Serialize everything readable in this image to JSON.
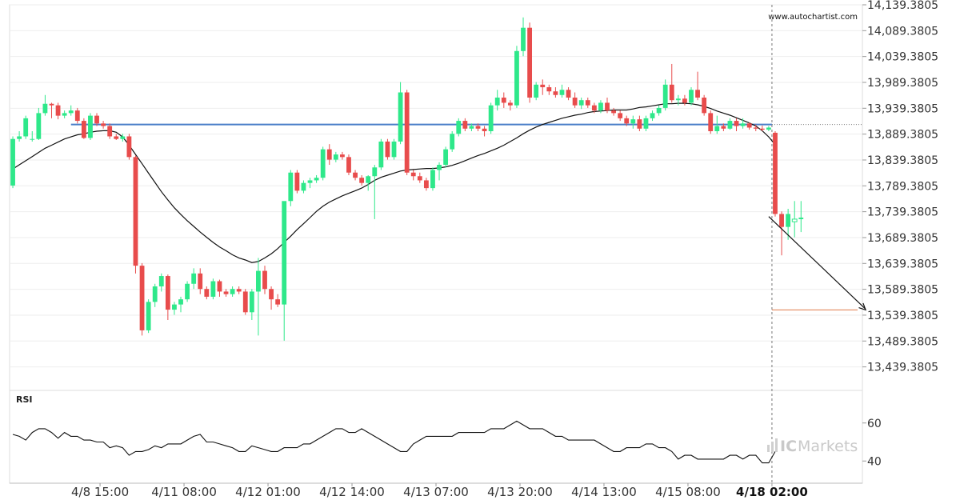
{
  "watermark": "www.autochartist.com",
  "brand": {
    "prefix": "IC",
    "name": "Markets",
    "color": "#c9c9c9"
  },
  "chart_data": {
    "type": "candlestick",
    "y_ticks": [
      "14,139.3805",
      "14,089.3805",
      "14,039.3805",
      "13,989.3805",
      "13,939.3805",
      "13,889.3805",
      "13,839.3805",
      "13,789.3805",
      "13,739.3805",
      "13,689.3805",
      "13,639.3805",
      "13,589.3805",
      "13,539.3805",
      "13,489.3805",
      "13,439.3805"
    ],
    "ylim": [
      13409.3805,
      14139.3805
    ],
    "x_ticks": [
      {
        "label": "4/8 15:00",
        "index": 13.5,
        "highlight": false
      },
      {
        "label": "4/11 08:00",
        "index": 26.5,
        "highlight": false
      },
      {
        "label": "4/12 01:00",
        "index": 39.5,
        "highlight": false
      },
      {
        "label": "4/12 14:00",
        "index": 52.5,
        "highlight": false
      },
      {
        "label": "4/13 07:00",
        "index": 65.5,
        "highlight": false
      },
      {
        "label": "4/13 20:00",
        "index": 78.5,
        "highlight": false
      },
      {
        "label": "4/14 13:00",
        "index": 91.5,
        "highlight": false
      },
      {
        "label": "4/15 08:00",
        "index": 104.5,
        "highlight": false
      },
      {
        "label": "4/18 02:00",
        "index": 117.5,
        "highlight": true
      }
    ],
    "candles": [
      [
        13790,
        13885,
        13785,
        13880
      ],
      [
        13880,
        13895,
        13875,
        13885
      ],
      [
        13885,
        13925,
        13880,
        13920
      ],
      [
        13880,
        13895,
        13875,
        13880
      ],
      [
        13880,
        13940,
        13878,
        13930
      ],
      [
        13930,
        13965,
        13925,
        13948
      ],
      [
        13948,
        13950,
        13920,
        13945
      ],
      [
        13945,
        13950,
        13918,
        13925
      ],
      [
        13925,
        13935,
        13920,
        13930
      ],
      [
        13930,
        13945,
        13925,
        13935
      ],
      [
        13935,
        13940,
        13910,
        13915
      ],
      [
        13915,
        13920,
        13880,
        13882
      ],
      [
        13882,
        13930,
        13878,
        13925
      ],
      [
        13925,
        13930,
        13905,
        13910
      ],
      [
        13910,
        13915,
        13900,
        13905
      ],
      [
        13905,
        13910,
        13880,
        13885
      ],
      [
        13885,
        13890,
        13878,
        13880
      ],
      [
        13880,
        13890,
        13875,
        13885
      ],
      [
        13885,
        13890,
        13840,
        13845
      ],
      [
        13845,
        13848,
        13620,
        13635
      ],
      [
        13635,
        13640,
        13500,
        13510
      ],
      [
        13510,
        13570,
        13505,
        13565
      ],
      [
        13565,
        13600,
        13555,
        13595
      ],
      [
        13595,
        13620,
        13585,
        13615
      ],
      [
        13615,
        13618,
        13530,
        13550
      ],
      [
        13550,
        13565,
        13540,
        13560
      ],
      [
        13560,
        13575,
        13545,
        13570
      ],
      [
        13570,
        13605,
        13565,
        13600
      ],
      [
        13600,
        13630,
        13590,
        13620
      ],
      [
        13620,
        13630,
        13580,
        13590
      ],
      [
        13590,
        13595,
        13570,
        13575
      ],
      [
        13575,
        13610,
        13570,
        13605
      ],
      [
        13605,
        13608,
        13575,
        13585
      ],
      [
        13585,
        13590,
        13575,
        13580
      ],
      [
        13580,
        13595,
        13575,
        13590
      ],
      [
        13590,
        13595,
        13580,
        13585
      ],
      [
        13585,
        13590,
        13540,
        13545
      ],
      [
        13545,
        13590,
        13530,
        13585
      ],
      [
        13585,
        13650,
        13500,
        13625
      ],
      [
        13625,
        13635,
        13580,
        13590
      ],
      [
        13590,
        13595,
        13550,
        13570
      ],
      [
        13570,
        13580,
        13555,
        13560
      ],
      [
        13560,
        13755,
        13490,
        13760
      ],
      [
        13760,
        13820,
        13750,
        13815
      ],
      [
        13815,
        13820,
        13775,
        13780
      ],
      [
        13780,
        13800,
        13775,
        13795
      ],
      [
        13795,
        13805,
        13785,
        13800
      ],
      [
        13800,
        13810,
        13795,
        13805
      ],
      [
        13805,
        13865,
        13800,
        13860
      ],
      [
        13860,
        13870,
        13830,
        13840
      ],
      [
        13840,
        13855,
        13835,
        13850
      ],
      [
        13850,
        13855,
        13840,
        13845
      ],
      [
        13845,
        13850,
        13810,
        13815
      ],
      [
        13815,
        13820,
        13800,
        13805
      ],
      [
        13805,
        13810,
        13790,
        13795
      ],
      [
        13795,
        13810,
        13780,
        13808
      ],
      [
        13808,
        13830,
        13725,
        13825
      ],
      [
        13825,
        13880,
        13820,
        13875
      ],
      [
        13875,
        13880,
        13840,
        13845
      ],
      [
        13845,
        13880,
        13840,
        13875
      ],
      [
        13875,
        13990,
        13870,
        13970
      ],
      [
        13970,
        13975,
        13810,
        13815
      ],
      [
        13815,
        13820,
        13800,
        13808
      ],
      [
        13808,
        13815,
        13795,
        13800
      ],
      [
        13800,
        13805,
        13780,
        13785
      ],
      [
        13785,
        13825,
        13780,
        13820
      ],
      [
        13820,
        13835,
        13800,
        13830
      ],
      [
        13830,
        13865,
        13825,
        13860
      ],
      [
        13860,
        13895,
        13855,
        13890
      ],
      [
        13890,
        13920,
        13885,
        13915
      ],
      [
        13915,
        13920,
        13895,
        13900
      ],
      [
        13900,
        13910,
        13895,
        13905
      ],
      [
        13905,
        13910,
        13895,
        13900
      ],
      [
        13900,
        13905,
        13885,
        13895
      ],
      [
        13895,
        13950,
        13890,
        13945
      ],
      [
        13945,
        13975,
        13935,
        13960
      ],
      [
        13960,
        13970,
        13940,
        13950
      ],
      [
        13950,
        13955,
        13935,
        13945
      ],
      [
        13945,
        14060,
        13940,
        14050
      ],
      [
        14050,
        14115,
        14040,
        14095
      ],
      [
        14095,
        14105,
        13950,
        13960
      ],
      [
        13960,
        13990,
        13955,
        13985
      ],
      [
        13985,
        13995,
        13965,
        13980
      ],
      [
        13980,
        13985,
        13965,
        13972
      ],
      [
        13972,
        13980,
        13960,
        13965
      ],
      [
        13965,
        13985,
        13960,
        13975
      ],
      [
        13975,
        13980,
        13955,
        13960
      ],
      [
        13960,
        13970,
        13940,
        13945
      ],
      [
        13945,
        13960,
        13938,
        13955
      ],
      [
        13955,
        13960,
        13940,
        13945
      ],
      [
        13945,
        13950,
        13930,
        13935
      ],
      [
        13935,
        13955,
        13930,
        13950
      ],
      [
        13950,
        13960,
        13930,
        13935
      ],
      [
        13935,
        13940,
        13925,
        13930
      ],
      [
        13930,
        13935,
        13915,
        13920
      ],
      [
        13920,
        13925,
        13905,
        13910
      ],
      [
        13910,
        13925,
        13900,
        13918
      ],
      [
        13918,
        13925,
        13895,
        13900
      ],
      [
        13900,
        13925,
        13895,
        13920
      ],
      [
        13920,
        13935,
        13915,
        13930
      ],
      [
        13930,
        13945,
        13925,
        13940
      ],
      [
        13940,
        13995,
        13935,
        13985
      ],
      [
        13985,
        14025,
        13950,
        13955
      ],
      [
        13955,
        13965,
        13945,
        13958
      ],
      [
        13958,
        13965,
        13945,
        13950
      ],
      [
        13950,
        13980,
        13945,
        13975
      ],
      [
        13975,
        14010,
        13955,
        13960
      ],
      [
        13960,
        13965,
        13925,
        13930
      ],
      [
        13930,
        13935,
        13890,
        13895
      ],
      [
        13895,
        13925,
        13890,
        13905
      ],
      [
        13905,
        13910,
        13895,
        13900
      ],
      [
        13900,
        13920,
        13898,
        13915
      ],
      [
        13915,
        13920,
        13895,
        13905
      ],
      [
        13905,
        13920,
        13900,
        13910
      ],
      [
        13910,
        13912,
        13898,
        13902
      ],
      [
        13902,
        13908,
        13895,
        13900
      ],
      [
        13900,
        13906,
        13895,
        13898
      ],
      [
        13898,
        13905,
        13895,
        13902
      ],
      [
        13892,
        13895,
        13730,
        13735
      ],
      [
        13735,
        13740,
        13655,
        13710
      ],
      [
        13710,
        13745,
        13685,
        13735
      ],
      [
        13720,
        13760,
        13690,
        13725
      ],
      [
        13725,
        13760,
        13700,
        13728
      ]
    ],
    "sma": [
      13822,
      13830,
      13838,
      13846,
      13854,
      13862,
      13868,
      13874,
      13880,
      13884,
      13888,
      13890,
      13893,
      13895,
      13896,
      13896,
      13893,
      13884,
      13868,
      13850,
      13832,
      13814,
      13796,
      13778,
      13762,
      13747,
      13734,
      13722,
      13711,
      13700,
      13690,
      13680,
      13671,
      13664,
      13656,
      13650,
      13646,
      13641,
      13643,
      13650,
      13658,
      13668,
      13680,
      13692,
      13705,
      13716,
      13728,
      13740,
      13750,
      13758,
      13764,
      13770,
      13775,
      13780,
      13785,
      13792,
      13800,
      13806,
      13810,
      13814,
      13818,
      13820,
      13821,
      13822,
      13823,
      13823,
      13824,
      13826,
      13829,
      13833,
      13838,
      13843,
      13848,
      13852,
      13857,
      13862,
      13868,
      13875,
      13882,
      13890,
      13897,
      13903,
      13908,
      13912,
      13916,
      13920,
      13923,
      13926,
      13928,
      13931,
      13933,
      13934,
      13935,
      13936,
      13936,
      13936,
      13938,
      13941,
      13942,
      13944,
      13946,
      13948,
      13948,
      13949,
      13949,
      13948,
      13946,
      13943,
      13939,
      13934,
      13930,
      13926,
      13921,
      13916,
      13911,
      13905,
      13896,
      13884,
      13869
    ],
    "support_level": 13908.0,
    "target_level": 13549.5,
    "forecast_arrow": {
      "from": [
        117,
        13730.0
      ],
      "to": [
        132,
        13549.5
      ]
    },
    "rsi": {
      "label": "RSI",
      "ticks": [
        "60",
        "40"
      ],
      "ylim": [
        30,
        70
      ],
      "values": [
        54,
        53,
        51,
        55,
        57,
        57,
        55,
        52,
        55,
        53,
        53,
        51,
        51,
        50,
        50,
        47,
        48,
        47,
        43,
        45,
        45,
        46,
        48,
        47,
        49,
        49,
        49,
        51,
        53,
        54,
        50,
        50,
        49,
        48,
        47,
        45,
        45,
        48,
        47,
        46,
        45,
        45,
        47,
        47,
        47,
        49,
        49,
        51,
        53,
        55,
        57,
        57,
        55,
        55,
        57,
        55,
        53,
        51,
        49,
        47,
        45,
        45,
        49,
        51,
        53,
        53,
        53,
        53,
        53,
        55,
        55,
        55,
        55,
        55,
        57,
        57,
        57,
        59,
        61,
        59,
        57,
        57,
        57,
        55,
        53,
        53,
        51,
        51,
        51,
        51,
        51,
        49,
        47,
        45,
        45,
        47,
        47,
        47,
        49,
        49,
        47,
        47,
        45,
        41,
        43,
        43,
        41,
        41,
        41,
        41,
        41,
        43,
        43,
        41,
        43,
        43,
        39,
        39,
        45
      ]
    }
  }
}
